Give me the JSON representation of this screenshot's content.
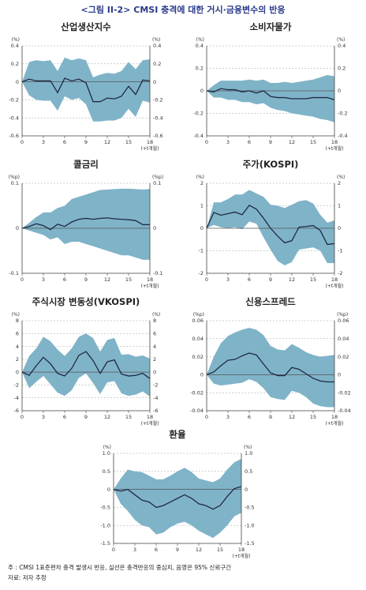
{
  "figure_title": "<그림 II-2> CMSI 충격에 대한 거시·금융변수의 반응",
  "notes": {
    "note": "주 : CMSI 1표준편차 충격 발생시 반응, 실선은 충격반응의 중심치, 음영은 95% 신뢰구간",
    "source": "자료: 저자 추정"
  },
  "colors": {
    "band": "#7fb3c8",
    "line": "#1f2a44",
    "zero": "#555555",
    "grid": "#9aa0a6"
  },
  "chart_data": [
    {
      "type": "line",
      "title": "산업생산지수",
      "unit": "(%)",
      "xlabel": "(+t개월)",
      "x": [
        0,
        1,
        2,
        3,
        4,
        5,
        6,
        7,
        8,
        9,
        10,
        11,
        12,
        13,
        14,
        15,
        16,
        17,
        18
      ],
      "x_ticks": [
        0,
        3,
        6,
        9,
        12,
        15,
        18
      ],
      "ylim": [
        -0.6,
        0.4
      ],
      "y_ticks": [
        0.4,
        0.2,
        0,
        -0.2,
        -0.4,
        -0.6
      ],
      "y_tick_labels": [
        "0.4",
        "0.2",
        "0",
        "-0.2",
        "-0.4",
        "-0.6"
      ],
      "center": [
        0,
        0.03,
        0.01,
        0.01,
        0.01,
        -0.12,
        0.04,
        0.01,
        0.03,
        -0.01,
        -0.22,
        -0.22,
        -0.18,
        -0.19,
        -0.16,
        -0.05,
        -0.14,
        0.02,
        0.01
      ],
      "upper": [
        0,
        0.22,
        0.24,
        0.23,
        0.24,
        0.12,
        0.27,
        0.24,
        0.26,
        0.24,
        0.05,
        0.08,
        0.1,
        0.09,
        0.12,
        0.22,
        0.14,
        0.24,
        0.25
      ],
      "lower": [
        0,
        -0.15,
        -0.2,
        -0.21,
        -0.21,
        -0.32,
        -0.16,
        -0.2,
        -0.18,
        -0.25,
        -0.44,
        -0.44,
        -0.43,
        -0.43,
        -0.4,
        -0.3,
        -0.39,
        -0.21,
        -0.23
      ]
    },
    {
      "type": "line",
      "title": "소비자물가",
      "unit": "(%)",
      "xlabel": "(+t개월)",
      "x": [
        0,
        1,
        2,
        3,
        4,
        5,
        6,
        7,
        8,
        9,
        10,
        11,
        12,
        13,
        14,
        15,
        16,
        17,
        18
      ],
      "x_ticks": [
        0,
        3,
        6,
        9,
        12,
        15,
        18
      ],
      "ylim": [
        -0.4,
        0.4
      ],
      "y_ticks": [
        0.4,
        0.2,
        0,
        -0.2,
        -0.4
      ],
      "y_tick_labels": [
        "0.4",
        "0.2",
        "0",
        "-0.2",
        "-0.4"
      ],
      "center": [
        0,
        -0.01,
        0.02,
        0.01,
        0.01,
        -0.01,
        0,
        -0.02,
        0,
        -0.05,
        -0.06,
        -0.06,
        -0.07,
        -0.07,
        -0.07,
        -0.06,
        -0.06,
        -0.06,
        -0.08
      ],
      "upper": [
        0,
        0.05,
        0.09,
        0.09,
        0.09,
        0.09,
        0.1,
        0.09,
        0.1,
        0.07,
        0.07,
        0.08,
        0.07,
        0.08,
        0.09,
        0.1,
        0.12,
        0.14,
        0.13
      ],
      "lower": [
        0,
        -0.06,
        -0.06,
        -0.08,
        -0.08,
        -0.1,
        -0.1,
        -0.12,
        -0.11,
        -0.15,
        -0.17,
        -0.18,
        -0.2,
        -0.21,
        -0.22,
        -0.23,
        -0.25,
        -0.26,
        -0.28
      ]
    },
    {
      "type": "line",
      "title": "콜금리",
      "unit": "(%p)",
      "xlabel": "(+t개월)",
      "x": [
        0,
        1,
        2,
        3,
        4,
        5,
        6,
        7,
        8,
        9,
        10,
        11,
        12,
        13,
        14,
        15,
        16,
        17,
        18
      ],
      "x_ticks": [
        0,
        3,
        6,
        9,
        12,
        15,
        18
      ],
      "ylim": [
        -0.1,
        0.1
      ],
      "y_ticks": [
        0.1,
        0,
        -0.1
      ],
      "y_tick_labels": [
        "0.1",
        "0",
        "-0.1"
      ],
      "center": [
        0,
        0.004,
        0.01,
        0.006,
        -0.003,
        0.009,
        0.004,
        0.014,
        0.02,
        0.022,
        0.02,
        0.022,
        0.023,
        0.021,
        0.02,
        0.019,
        0.017,
        0.008,
        0.008
      ],
      "upper": [
        0,
        0.012,
        0.025,
        0.035,
        0.035,
        0.045,
        0.05,
        0.065,
        0.07,
        0.075,
        0.08,
        0.085,
        0.086,
        0.087,
        0.088,
        0.088,
        0.087,
        0.086,
        0.087
      ],
      "lower": [
        0,
        -0.005,
        -0.01,
        -0.015,
        -0.025,
        -0.02,
        -0.035,
        -0.03,
        -0.03,
        -0.035,
        -0.04,
        -0.045,
        -0.05,
        -0.055,
        -0.06,
        -0.06,
        -0.065,
        -0.07,
        -0.07
      ]
    },
    {
      "type": "line",
      "title": "주가(KOSPI)",
      "unit": "(%)",
      "xlabel": "(+t개월)",
      "x": [
        0,
        1,
        2,
        3,
        4,
        5,
        6,
        7,
        8,
        9,
        10,
        11,
        12,
        13,
        14,
        15,
        16,
        17,
        18
      ],
      "x_ticks": [
        0,
        3,
        6,
        9,
        12,
        15,
        18
      ],
      "ylim": [
        -2,
        2
      ],
      "y_ticks": [
        2,
        1,
        0,
        -1,
        -2
      ],
      "y_tick_labels": [
        "2",
        "1",
        "0",
        "-1",
        "-2"
      ],
      "center": [
        0,
        0.7,
        0.58,
        0.65,
        0.72,
        0.6,
        1.02,
        0.85,
        0.45,
        0,
        -0.35,
        -0.65,
        -0.55,
        0.05,
        0.08,
        0.12,
        -0.1,
        -0.72,
        -0.68
      ],
      "upper": [
        0,
        1.15,
        1.15,
        1.3,
        1.5,
        1.5,
        1.7,
        1.55,
        1.4,
        1.05,
        1,
        0.9,
        1.05,
        1.2,
        1.25,
        1.1,
        0.6,
        0.25,
        0.35
      ],
      "lower": [
        0,
        0.15,
        0.05,
        0,
        0.05,
        -0.05,
        0.3,
        0.2,
        -0.4,
        -0.95,
        -1.45,
        -1.65,
        -1.5,
        -0.95,
        -0.9,
        -0.85,
        -1,
        -1.55,
        -1.55
      ]
    },
    {
      "type": "line",
      "title": "주식시장 변동성(VKOSPI)",
      "unit": "(%)",
      "xlabel": "(+t개월)",
      "x": [
        0,
        1,
        2,
        3,
        4,
        5,
        6,
        7,
        8,
        9,
        10,
        11,
        12,
        13,
        14,
        15,
        16,
        17,
        18
      ],
      "x_ticks": [
        0,
        3,
        6,
        9,
        12,
        15,
        18
      ],
      "ylim": [
        -6,
        8
      ],
      "y_ticks": [
        8,
        6,
        4,
        2,
        0,
        -2,
        -4,
        -6
      ],
      "y_tick_labels": [
        "8",
        "6",
        "4",
        "2",
        "0",
        "-2",
        "-4",
        "-6"
      ],
      "center": [
        0,
        -0.5,
        1,
        2.3,
        1.3,
        -0.2,
        -0.6,
        0.6,
        2.6,
        3.2,
        1.8,
        -0.2,
        1.6,
        1.9,
        -0.3,
        -0.6,
        -0.5,
        -0.2,
        -1
      ],
      "upper": [
        0,
        2.5,
        3.7,
        5.5,
        4.8,
        3.5,
        2.5,
        3.7,
        5.5,
        6,
        5.3,
        3.2,
        5,
        5.3,
        2.7,
        2.8,
        2.4,
        2.6,
        2.1
      ],
      "lower": [
        0,
        -2.5,
        -1.5,
        -0.6,
        -1.9,
        -3.2,
        -3.7,
        -2.8,
        -0.9,
        -0.2,
        -1.7,
        -3.4,
        -1.6,
        -1.4,
        -3.3,
        -3.7,
        -3.5,
        -3,
        -3.8
      ]
    },
    {
      "type": "line",
      "title": "신용스프레드",
      "unit": "(%p)",
      "xlabel": "(+t개월)",
      "x": [
        0,
        1,
        2,
        3,
        4,
        5,
        6,
        7,
        8,
        9,
        10,
        11,
        12,
        13,
        14,
        15,
        16,
        17,
        18
      ],
      "x_ticks": [
        0,
        3,
        6,
        9,
        12,
        15,
        18
      ],
      "ylim": [
        -0.04,
        0.06
      ],
      "y_ticks": [
        0.06,
        0.04,
        0.02,
        0,
        -0.02,
        -0.04
      ],
      "y_tick_labels": [
        "0.06",
        "0.04",
        "0.02",
        "0",
        "-0.02",
        "-0.04"
      ],
      "center": [
        0,
        0.003,
        0.01,
        0.016,
        0.017,
        0.021,
        0.024,
        0.022,
        0.012,
        0.002,
        -0.001,
        -0.001,
        0.008,
        0.006,
        0.001,
        -0.004,
        -0.007,
        -0.008,
        -0.008
      ],
      "upper": [
        0,
        0.02,
        0.035,
        0.043,
        0.047,
        0.05,
        0.052,
        0.05,
        0.044,
        0.032,
        0.028,
        0.027,
        0.034,
        0.03,
        0.025,
        0.022,
        0.02,
        0.021,
        0.022
      ],
      "lower": [
        0,
        -0.01,
        -0.012,
        -0.011,
        -0.01,
        -0.009,
        -0.005,
        -0.008,
        -0.015,
        -0.025,
        -0.027,
        -0.028,
        -0.018,
        -0.02,
        -0.025,
        -0.032,
        -0.035,
        -0.036,
        -0.036
      ]
    },
    {
      "type": "line",
      "title": "환율",
      "unit": "(%)",
      "xlabel": "(+t개월)",
      "x": [
        0,
        1,
        2,
        3,
        4,
        5,
        6,
        7,
        8,
        9,
        10,
        11,
        12,
        13,
        14,
        15,
        16,
        17,
        18
      ],
      "x_ticks": [
        0,
        3,
        6,
        9,
        12,
        15,
        18
      ],
      "ylim": [
        -1.5,
        1.0
      ],
      "y_ticks": [
        1.0,
        0.5,
        0,
        -0.5,
        -1.0,
        -1.5
      ],
      "y_tick_labels": [
        "1.0",
        "0.5",
        "0",
        "-0.5",
        "-1.0",
        "-1.5"
      ],
      "center": [
        0,
        -0.05,
        0,
        -0.15,
        -0.3,
        -0.35,
        -0.5,
        -0.45,
        -0.35,
        -0.25,
        -0.15,
        -0.25,
        -0.4,
        -0.45,
        -0.55,
        -0.45,
        -0.2,
        0.02,
        0.08
      ],
      "upper": [
        0,
        0.3,
        0.55,
        0.5,
        0.48,
        0.38,
        0.28,
        0.28,
        0.38,
        0.5,
        0.6,
        0.48,
        0.3,
        0.25,
        0.2,
        0.3,
        0.55,
        0.75,
        0.85
      ],
      "lower": [
        0,
        -0.4,
        -0.6,
        -0.85,
        -1,
        -1.05,
        -1.25,
        -1.2,
        -1.05,
        -0.95,
        -0.9,
        -1,
        -1.15,
        -1.25,
        -1.35,
        -1.2,
        -1,
        -0.75,
        -0.65
      ]
    }
  ]
}
